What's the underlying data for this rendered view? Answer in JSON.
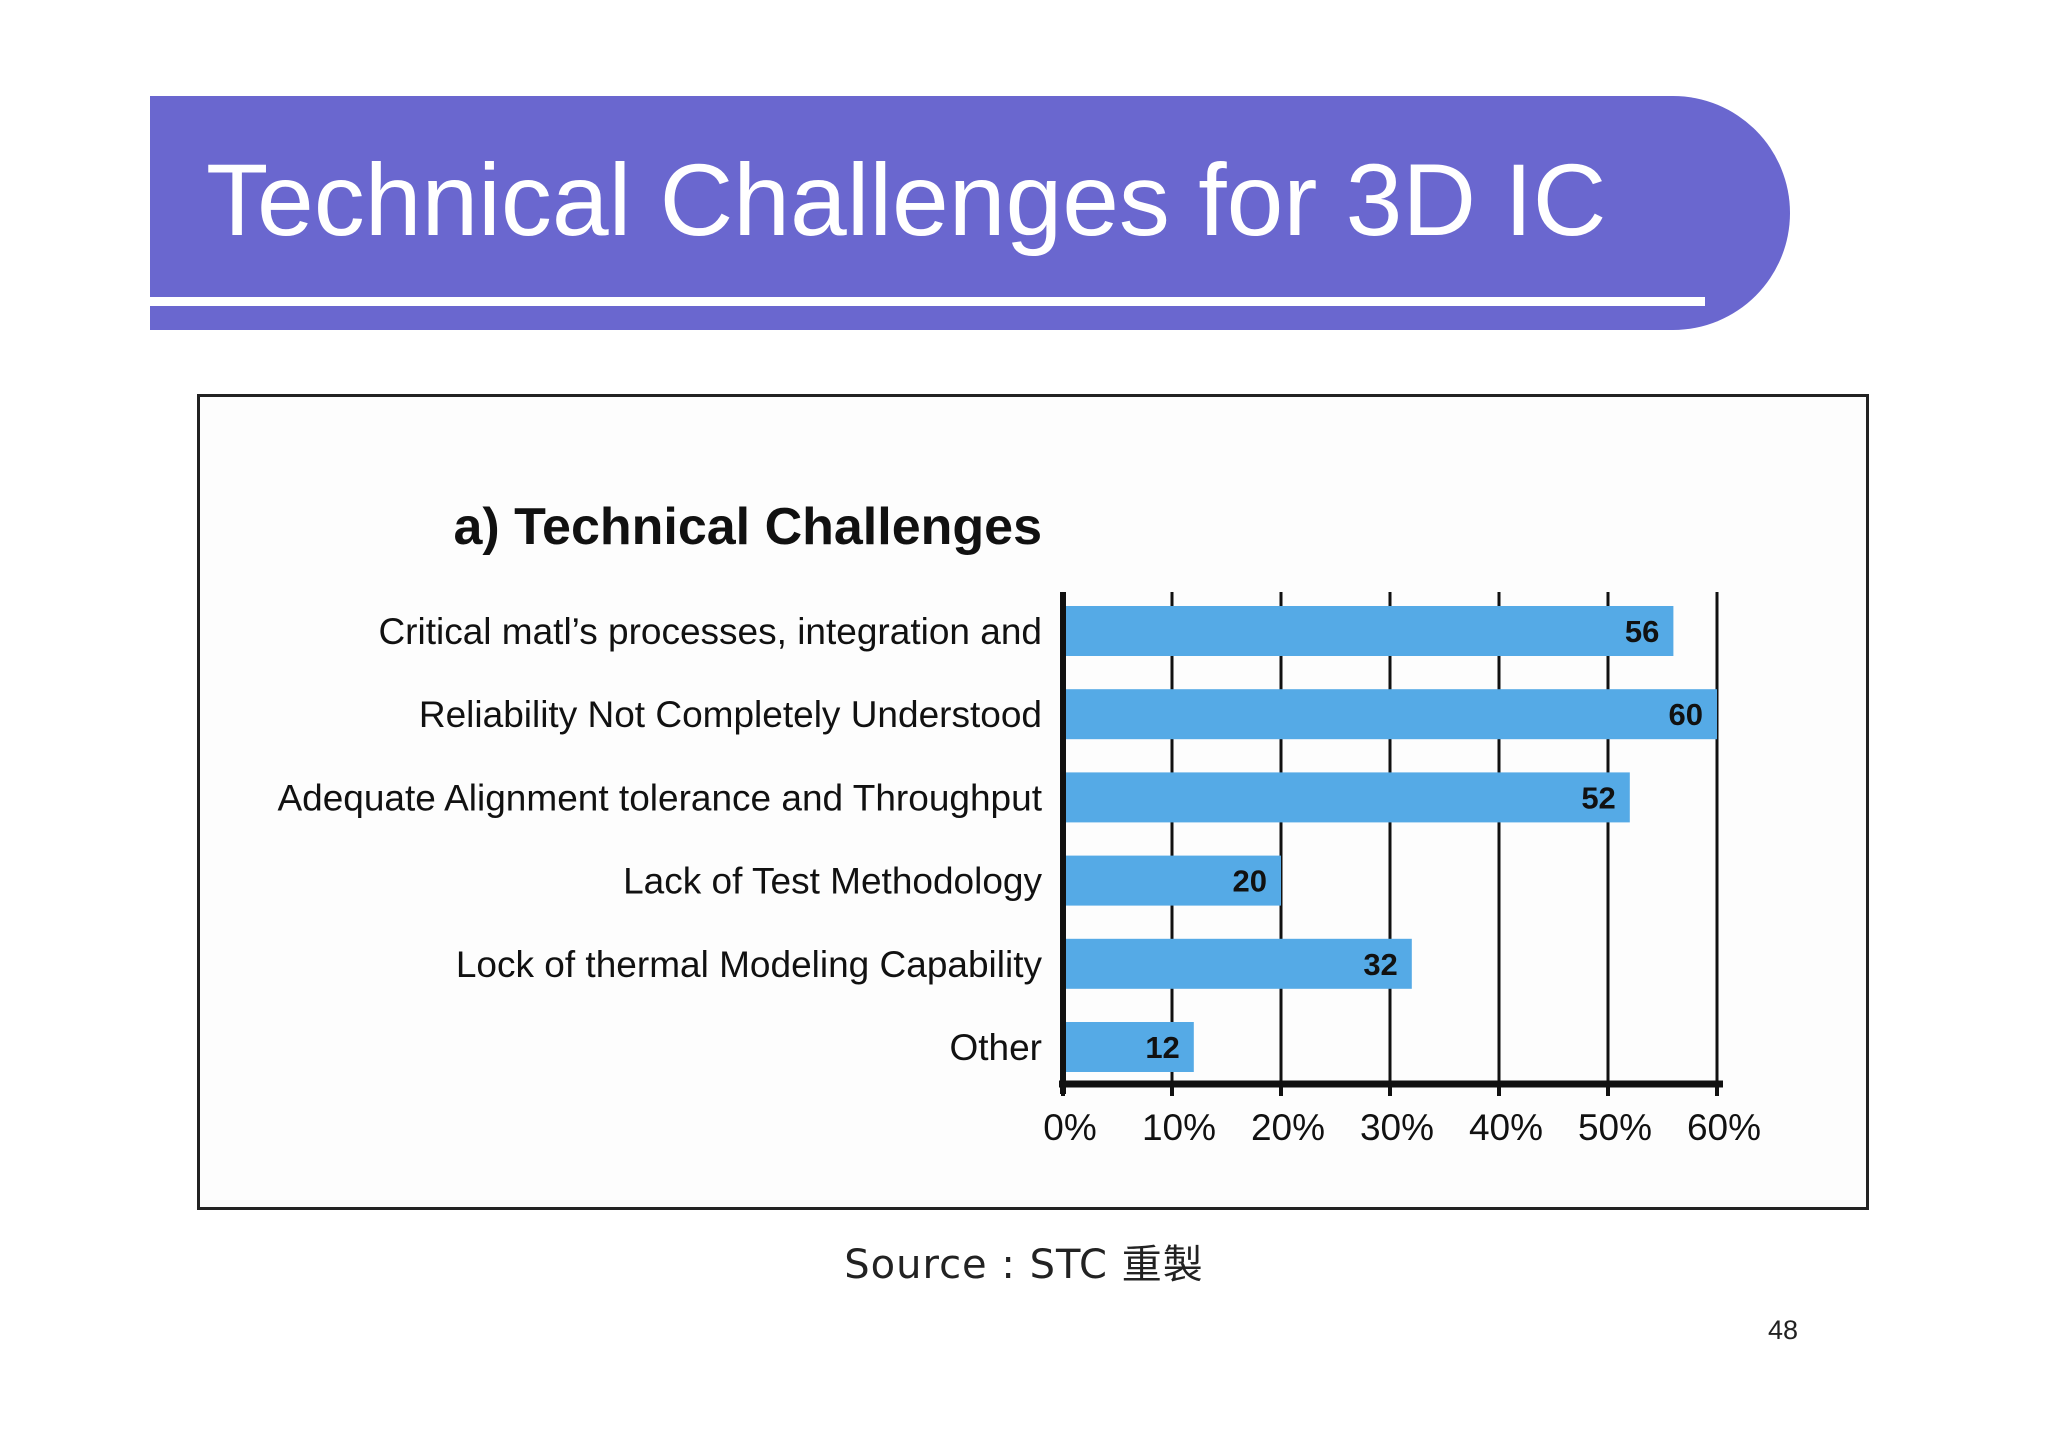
{
  "slide": {
    "title": "Technical Challenges for 3D IC",
    "source": "Source : STC 重製",
    "page_number": "48",
    "banner_color": "#6a67cf"
  },
  "chart_data": {
    "type": "bar",
    "orientation": "horizontal",
    "title": "a) Technical Challenges",
    "categories": [
      "Critical matl’s processes, integration and",
      "Reliability Not Completely Understood",
      "Adequate Alignment tolerance and Throughput",
      "Lack of Test Methodology",
      "Lock of thermal Modeling Capability",
      "Other"
    ],
    "values": [
      56,
      60,
      52,
      20,
      32,
      12
    ],
    "xlim": [
      0,
      60
    ],
    "x_ticks": [
      "0%",
      "10%",
      "20%",
      "30%",
      "40%",
      "50%",
      "60%"
    ],
    "grid": true,
    "bar_color": "#55aae6"
  }
}
